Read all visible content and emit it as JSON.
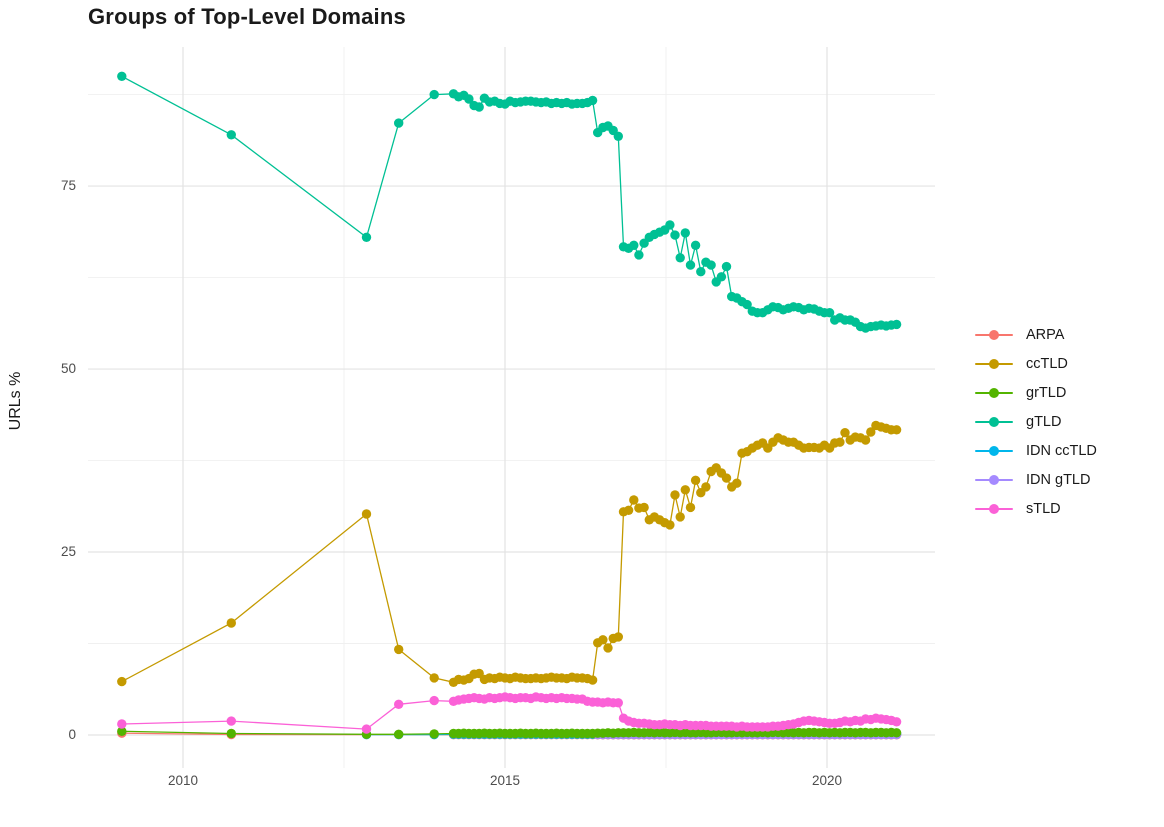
{
  "chart_data": {
    "type": "line",
    "title": "Groups of Top-Level Domains",
    "xlabel": "",
    "ylabel": "URLs %",
    "x_tick_labels": [
      "2010",
      "2015",
      "2020"
    ],
    "x_tick_values": [
      2010,
      2015,
      2020
    ],
    "x_minor_gridlines": [
      2012.5,
      2017.5
    ],
    "y_tick_labels": [
      "0",
      "25",
      "50",
      "75"
    ],
    "y_tick_values": [
      0,
      25,
      50,
      75
    ],
    "y_minor_gridlines": [
      12.5,
      37.5,
      62.5,
      87.5
    ],
    "xlim": [
      2008.525,
      2021.677
    ],
    "ylim": [
      -4.51,
      94.0
    ],
    "grid": true,
    "legend_position": "right",
    "point_radius": 4.7,
    "line_width": 1.3,
    "series": [
      {
        "name": "ARPA",
        "color": "#F8766D",
        "points": [
          [
            2009.05,
            0.25
          ],
          [
            2010.75,
            0.07
          ],
          [
            2012.85,
            0.05
          ],
          [
            2013.35,
            0.05
          ],
          [
            2013.9,
            0.05
          ]
        ],
        "segments": [
          {
            "x0": 2014.2,
            "dx": 0.08,
            "n": 28,
            "const": 0.04
          },
          {
            "x0": 2016.44,
            "dx": 0.08,
            "n": 5,
            "const": 0.03
          },
          {
            "x0": 2016.84,
            "dx": 0.08,
            "n": 54,
            "const": 0.03
          }
        ]
      },
      {
        "name": "ccTLD",
        "color": "#C49A00",
        "points": [
          [
            2009.05,
            7.3
          ],
          [
            2010.75,
            15.3
          ],
          [
            2012.85,
            30.2
          ],
          [
            2013.35,
            11.7
          ],
          [
            2013.9,
            7.8
          ]
        ],
        "segments": [
          {
            "x0": 2014.2,
            "dx": 0.08,
            "values": [
              7.2,
              7.6,
              7.5,
              7.7,
              8.3,
              8.4,
              7.6,
              7.8,
              7.7,
              7.9,
              7.8,
              7.7,
              7.9,
              7.8,
              7.7,
              7.7,
              7.8,
              7.7,
              7.8,
              7.9,
              7.8,
              7.8,
              7.7,
              7.9,
              7.8,
              7.8,
              7.7,
              7.5
            ]
          },
          {
            "x0": 2016.44,
            "dx": 0.08,
            "values": [
              12.6,
              13.0,
              11.9,
              13.2,
              13.4
            ]
          },
          {
            "x0": 2016.84,
            "dx": 0.08,
            "values": [
              30.5,
              30.7,
              32.1,
              31.0,
              31.1,
              29.4,
              29.8,
              29.4,
              29.0,
              28.7,
              32.8,
              29.8,
              33.5,
              31.1,
              34.8,
              33.1,
              33.9,
              36.0,
              36.5,
              35.8,
              35.1,
              33.9,
              34.4,
              38.5,
              38.7,
              39.2,
              39.6,
              39.9,
              39.2,
              40.0,
              40.6,
              40.3,
              40.0,
              40.0,
              39.6,
              39.2,
              39.3,
              39.3,
              39.2,
              39.6,
              39.2,
              39.9,
              40.0,
              41.3,
              40.3,
              40.7,
              40.6,
              40.3,
              41.4,
              42.3,
              42.1,
              41.9,
              41.7,
              41.7
            ]
          }
        ]
      },
      {
        "name": "gTLD",
        "color": "#00C094",
        "points": [
          [
            2009.05,
            90.0
          ],
          [
            2010.75,
            82.0
          ],
          [
            2012.85,
            68.0
          ],
          [
            2013.35,
            83.6
          ],
          [
            2013.9,
            87.5
          ]
        ],
        "segments": [
          {
            "x0": 2014.2,
            "dx": 0.08,
            "values": [
              87.6,
              87.2,
              87.4,
              86.9,
              86.0,
              85.8,
              87.0,
              86.5,
              86.6,
              86.3,
              86.2,
              86.6,
              86.4,
              86.5,
              86.6,
              86.6,
              86.5,
              86.4,
              86.5,
              86.3,
              86.4,
              86.3,
              86.4,
              86.2,
              86.3,
              86.3,
              86.4,
              86.7
            ]
          },
          {
            "x0": 2016.44,
            "dx": 0.08,
            "values": [
              82.3,
              83.0,
              83.2,
              82.6,
              81.8
            ]
          },
          {
            "x0": 2016.84,
            "dx": 0.08,
            "values": [
              66.7,
              66.5,
              66.9,
              65.6,
              67.2,
              68.0,
              68.4,
              68.7,
              69.0,
              69.7,
              68.3,
              65.2,
              68.6,
              64.2,
              66.9,
              63.3,
              64.6,
              64.2,
              61.9,
              62.6,
              64.0,
              59.9,
              59.7,
              59.2,
              58.8,
              57.9,
              57.7,
              57.7,
              58.1,
              58.5,
              58.4,
              58.1,
              58.3,
              58.5,
              58.4,
              58.1,
              58.3,
              58.2,
              57.9,
              57.7,
              57.7,
              56.7,
              57.0,
              56.7,
              56.7,
              56.4,
              55.8,
              55.6,
              55.8,
              55.9,
              56.0,
              55.9,
              56.0,
              56.1
            ]
          }
        ]
      },
      {
        "name": "IDN ccTLD",
        "color": "#00B6EB",
        "points": [
          [
            2012.85,
            0.05
          ],
          [
            2013.35,
            0.06
          ],
          [
            2013.9,
            0.06
          ]
        ],
        "segments": [
          {
            "x0": 2014.2,
            "dx": 0.08,
            "n": 28,
            "const": 0.1
          },
          {
            "x0": 2016.44,
            "dx": 0.08,
            "n": 5,
            "const": 0.1
          },
          {
            "x0": 2016.84,
            "dx": 0.08,
            "n": 54,
            "const": 0.12
          }
        ]
      },
      {
        "name": "IDN gTLD",
        "color": "#A58AFF",
        "points": [],
        "segments": [
          {
            "x0": 2016.44,
            "dx": 0.08,
            "n": 5,
            "const": 0.06
          },
          {
            "x0": 2016.84,
            "dx": 0.08,
            "n": 54,
            "const": 0.06
          }
        ]
      },
      {
        "name": "grTLD",
        "color": "#53B400",
        "points": [
          [
            2009.05,
            0.5
          ],
          [
            2010.75,
            0.2
          ],
          [
            2012.85,
            0.1
          ],
          [
            2013.35,
            0.1
          ],
          [
            2013.9,
            0.15
          ]
        ],
        "segments": [
          {
            "x0": 2014.2,
            "dx": 0.08,
            "values": [
              0.2,
              0.2,
              0.25,
              0.2,
              0.2,
              0.2,
              0.25,
              0.2,
              0.2,
              0.25,
              0.2,
              0.2,
              0.2,
              0.25,
              0.2,
              0.2,
              0.25,
              0.2,
              0.2,
              0.2,
              0.25,
              0.2,
              0.2,
              0.25,
              0.2,
              0.2,
              0.2,
              0.2
            ]
          },
          {
            "x0": 2016.44,
            "dx": 0.08,
            "values": [
              0.25,
              0.25,
              0.3,
              0.25,
              0.3
            ]
          },
          {
            "x0": 2016.84,
            "dx": 0.08,
            "values": [
              0.3,
              0.3,
              0.35,
              0.3,
              0.3,
              0.35,
              0.3,
              0.35,
              0.3,
              0.3,
              0.35,
              0.3,
              0.35,
              0.3,
              0.3,
              0.35,
              0.3,
              0.3,
              0.35,
              0.35,
              0.3,
              0.3,
              0.35,
              0.3,
              0.35,
              0.3,
              0.3,
              0.35,
              0.3,
              0.35,
              0.35,
              0.3,
              0.35,
              0.3,
              0.35,
              0.3,
              0.35,
              0.35,
              0.3,
              0.35,
              0.3,
              0.35,
              0.3,
              0.35,
              0.35,
              0.3,
              0.35,
              0.35,
              0.3,
              0.35,
              0.35,
              0.3,
              0.35,
              0.3
            ]
          }
        ]
      },
      {
        "name": "sTLD",
        "color": "#FB61D7",
        "points": [
          [
            2009.05,
            1.5
          ],
          [
            2010.75,
            1.9
          ],
          [
            2012.85,
            0.8
          ],
          [
            2013.35,
            4.2
          ],
          [
            2013.9,
            4.7
          ]
        ],
        "segments": [
          {
            "x0": 2014.2,
            "dx": 0.08,
            "values": [
              4.6,
              4.8,
              4.9,
              5.0,
              5.1,
              5.0,
              4.9,
              5.1,
              5.0,
              5.1,
              5.2,
              5.1,
              5.0,
              5.1,
              5.1,
              5.0,
              5.2,
              5.1,
              5.0,
              5.1,
              5.0,
              5.1,
              5.0,
              5.0,
              4.9,
              4.9,
              4.6,
              4.5
            ]
          },
          {
            "x0": 2016.44,
            "dx": 0.08,
            "values": [
              4.5,
              4.4,
              4.5,
              4.4,
              4.4
            ]
          },
          {
            "x0": 2016.84,
            "dx": 0.08,
            "values": [
              2.3,
              1.9,
              1.7,
              1.6,
              1.6,
              1.5,
              1.4,
              1.4,
              1.5,
              1.4,
              1.4,
              1.3,
              1.4,
              1.3,
              1.3,
              1.3,
              1.3,
              1.2,
              1.2,
              1.2,
              1.2,
              1.2,
              1.1,
              1.2,
              1.1,
              1.1,
              1.1,
              1.1,
              1.1,
              1.2,
              1.2,
              1.3,
              1.4,
              1.5,
              1.7,
              1.9,
              2.0,
              1.9,
              1.8,
              1.7,
              1.6,
              1.6,
              1.7,
              1.9,
              1.8,
              2.0,
              1.9,
              2.2,
              2.1,
              2.3,
              2.2,
              2.1,
              2.0,
              1.8
            ]
          }
        ]
      }
    ]
  },
  "legend": {
    "items": [
      {
        "label": "ARPA",
        "color": "#F8766D"
      },
      {
        "label": "ccTLD",
        "color": "#C49A00"
      },
      {
        "label": "grTLD",
        "color": "#53B400"
      },
      {
        "label": "gTLD",
        "color": "#00C094"
      },
      {
        "label": "IDN ccTLD",
        "color": "#00B6EB"
      },
      {
        "label": "IDN gTLD",
        "color": "#A58AFF"
      },
      {
        "label": "sTLD",
        "color": "#FB61D7"
      }
    ]
  }
}
